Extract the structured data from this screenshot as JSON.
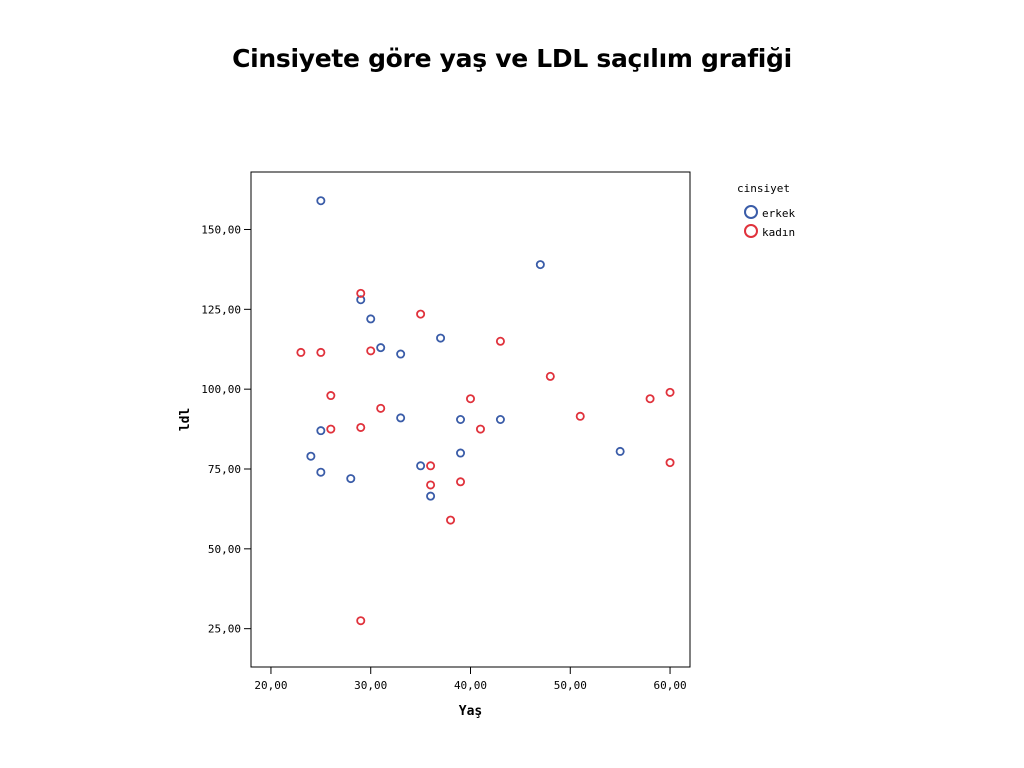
{
  "title": "Cinsiyete göre yaş ve LDL saçılım grafiği",
  "chart_data": {
    "type": "scatter",
    "xlabel": "Yaş",
    "ylabel": "ldl",
    "xlim": [
      18,
      62
    ],
    "ylim": [
      13,
      168
    ],
    "x_ticks": [
      20,
      30,
      40,
      50,
      60
    ],
    "x_tick_labels": [
      "20,00",
      "30,00",
      "40,00",
      "50,00",
      "60,00"
    ],
    "y_ticks": [
      25,
      50,
      75,
      100,
      125,
      150
    ],
    "y_tick_labels": [
      "25,00",
      "50,00",
      "75,00",
      "100,00",
      "125,00",
      "150,00"
    ],
    "grid": false,
    "legend": {
      "title": "cinsiyet",
      "placement": "right"
    },
    "series": [
      {
        "name": "erkek",
        "color": "#3a5ca8",
        "points": [
          [
            25,
            159
          ],
          [
            29,
            128
          ],
          [
            30,
            122
          ],
          [
            31,
            113
          ],
          [
            33,
            111
          ],
          [
            37,
            116
          ],
          [
            47,
            139
          ],
          [
            25,
            87
          ],
          [
            24,
            79
          ],
          [
            25,
            74
          ],
          [
            28,
            72
          ],
          [
            33,
            91
          ],
          [
            35,
            76
          ],
          [
            36,
            66.5
          ],
          [
            39,
            90.5
          ],
          [
            39,
            80
          ],
          [
            43,
            90.5
          ],
          [
            55,
            80.5
          ]
        ]
      },
      {
        "name": "kadın",
        "color": "#e0323c",
        "points": [
          [
            29,
            130
          ],
          [
            35,
            123.5
          ],
          [
            23,
            111.5
          ],
          [
            25,
            111.5
          ],
          [
            30,
            112
          ],
          [
            43,
            115
          ],
          [
            26,
            98
          ],
          [
            31,
            94
          ],
          [
            26,
            87.5
          ],
          [
            29,
            88
          ],
          [
            40,
            97
          ],
          [
            41,
            87.5
          ],
          [
            48,
            104
          ],
          [
            51,
            91.5
          ],
          [
            58,
            97
          ],
          [
            60,
            99
          ],
          [
            60,
            77
          ],
          [
            36,
            76
          ],
          [
            36,
            70
          ],
          [
            39,
            71
          ],
          [
            38,
            59
          ],
          [
            29,
            27.5
          ]
        ]
      }
    ]
  }
}
